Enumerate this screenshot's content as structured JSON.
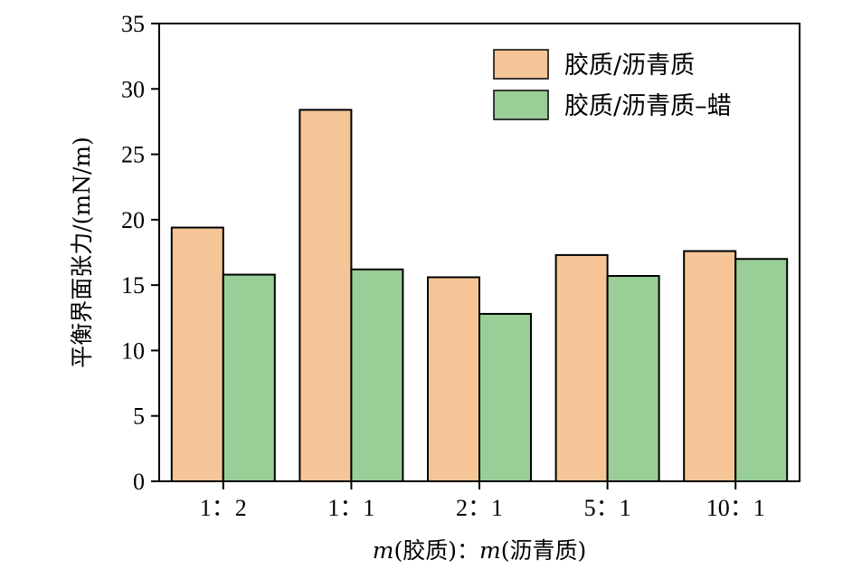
{
  "chart_data": {
    "type": "bar",
    "categories": [
      "1：2",
      "1：1",
      "2：1",
      "5：1",
      "10：1"
    ],
    "series": [
      {
        "name": "胶质/沥青质",
        "values": [
          19.4,
          28.4,
          15.6,
          17.3,
          17.6
        ],
        "color": "#F5C597"
      },
      {
        "name": "胶质/沥青质–蜡",
        "values": [
          15.8,
          16.2,
          12.8,
          15.7,
          17.0
        ],
        "color": "#99CF97"
      }
    ],
    "xlabel_parts": [
      "m",
      "(胶质)：",
      "m",
      "(沥青质)"
    ],
    "ylabel": "平衡界面张力/(mN/m)",
    "ylim": [
      0,
      35
    ],
    "yticks": [
      0,
      5,
      10,
      15,
      20,
      25,
      30,
      35
    ],
    "grid": false,
    "legend_position": "top-right"
  }
}
